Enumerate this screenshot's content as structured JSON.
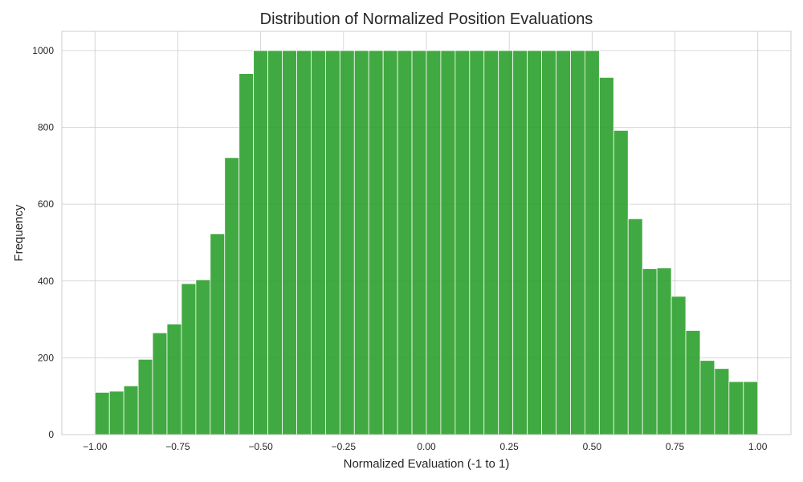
{
  "chart_data": {
    "type": "bar",
    "title": "Distribution of Normalized Position Evaluations",
    "xlabel": "Normalized Evaluation (-1 to 1)",
    "ylabel": "Frequency",
    "xlim": [
      -1.1,
      1.1
    ],
    "ylim": [
      0,
      1050
    ],
    "xticks": [
      -1.0,
      -0.75,
      -0.5,
      -0.25,
      0.0,
      0.25,
      0.5,
      0.75,
      1.0
    ],
    "xtick_labels": [
      "−1.00",
      "−0.75",
      "−0.50",
      "−0.25",
      "0.00",
      "0.25",
      "0.50",
      "0.75",
      "1.00"
    ],
    "yticks": [
      0,
      200,
      400,
      600,
      800,
      1000
    ],
    "ytick_labels": [
      "0",
      "200",
      "400",
      "600",
      "800",
      "1000"
    ],
    "grid": true,
    "bar_color": "#2ca02c",
    "bin_range": [
      -1.0,
      1.0
    ],
    "values": [
      110,
      113,
      127,
      196,
      265,
      288,
      393,
      403,
      523,
      721,
      940,
      1000,
      1000,
      1000,
      1000,
      1000,
      1000,
      1000,
      1000,
      1000,
      1000,
      1000,
      1000,
      1000,
      1000,
      1000,
      1000,
      1000,
      1000,
      1000,
      1000,
      1000,
      1000,
      1000,
      1000,
      930,
      792,
      562,
      432,
      434,
      360,
      271,
      193,
      172,
      138,
      138
    ]
  }
}
